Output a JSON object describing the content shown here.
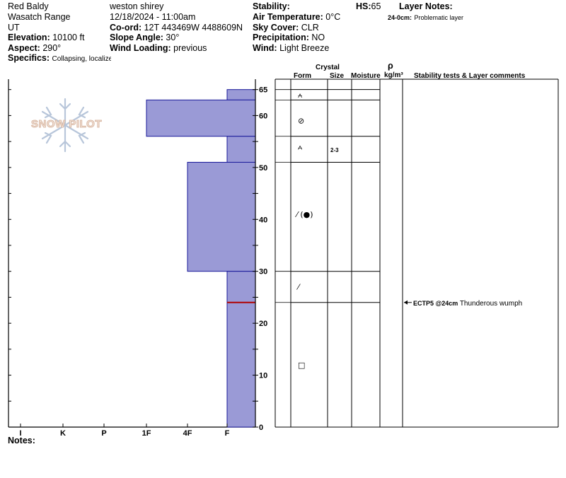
{
  "header": {
    "location_name": "Red Baldy",
    "range": "Wasatch Range",
    "state": "UT",
    "elevation_label": "Elevation:",
    "elevation_value": "10100 ft",
    "aspect_label": "Aspect:",
    "aspect_value": "290°",
    "specifics_label": "Specifics:",
    "specifics_value": "Collapsing, localized",
    "observer": "weston shirey",
    "datetime": "12/18/2024 - 11:00am",
    "coord_label": "Co-ord:",
    "coord_value": "12T 443469W 4488609N",
    "slope_label": "Slope Angle:",
    "slope_value": "30°",
    "wind_loading_label": "Wind Loading:",
    "wind_loading_value": "previous",
    "stability_label": "Stability:",
    "air_temp_label": "Air Temperature:",
    "air_temp_value": "0°C",
    "sky_label": "Sky Cover:",
    "sky_value": "CLR",
    "precip_label": "Precipitation:",
    "precip_value": "NO",
    "wind_label": "Wind:",
    "wind_value": "Light Breeze",
    "hs_label": "HS:",
    "hs_value": "65",
    "layer_notes_label": "Layer Notes:",
    "layer_note_range": "24-0cm:",
    "layer_note_text": "Problematic layer"
  },
  "logo": {
    "text": "SNOW PILOT"
  },
  "columns": {
    "crystal": "Crystal",
    "form": "Form",
    "size": "Size",
    "moisture": "Moisture",
    "rho": "ρ",
    "density_unit": "kg/m³",
    "stability_comments": "Stability tests & Layer comments"
  },
  "notes_label": "Notes:",
  "chart_data": {
    "type": "bar",
    "orientation": "horizontal",
    "description_axis": "snow height (cm) vs hand hardness",
    "hardness_scale": [
      "I",
      "K",
      "P",
      "1F",
      "4F",
      "F"
    ],
    "height_ticks": [
      0,
      10,
      20,
      30,
      40,
      50,
      60,
      65
    ],
    "ylim": [
      0,
      65
    ],
    "bar_color": "#9a9ad6",
    "bar_edge_color": "#1a1a9a",
    "layers": [
      {
        "top": 65,
        "bottom": 63,
        "hardness": "F",
        "form": "graupel-star",
        "size": ""
      },
      {
        "top": 63,
        "bottom": 56,
        "hardness": "1F",
        "form": "wind-slab",
        "size": ""
      },
      {
        "top": 56,
        "bottom": 51,
        "hardness": "F",
        "form": "graupel-star",
        "size": "2-3"
      },
      {
        "top": 51,
        "bottom": 30,
        "hardness": "4F",
        "form": "mixed",
        "size": ""
      },
      {
        "top": 30,
        "bottom": 24,
        "hardness": "F",
        "form": "fragmented",
        "size": ""
      },
      {
        "top": 24,
        "bottom": 0,
        "hardness": "F",
        "form": "faceted",
        "size": ""
      }
    ],
    "symbols": [
      {
        "height": 64,
        "glyph": "⩜"
      },
      {
        "height": 59,
        "glyph": "⊘"
      },
      {
        "height": 54,
        "glyph": "⩜"
      },
      {
        "height": 41,
        "glyph": "⁄ (●)"
      },
      {
        "height": 27,
        "glyph": "⁄"
      },
      {
        "height": 12,
        "glyph": "□"
      }
    ],
    "problem_layer_height": 24,
    "problem_layer_color": "#b00000",
    "stability_test": {
      "height": 24,
      "label": "ECTP5 @24cm",
      "comment": "Thunderous wumph"
    }
  }
}
